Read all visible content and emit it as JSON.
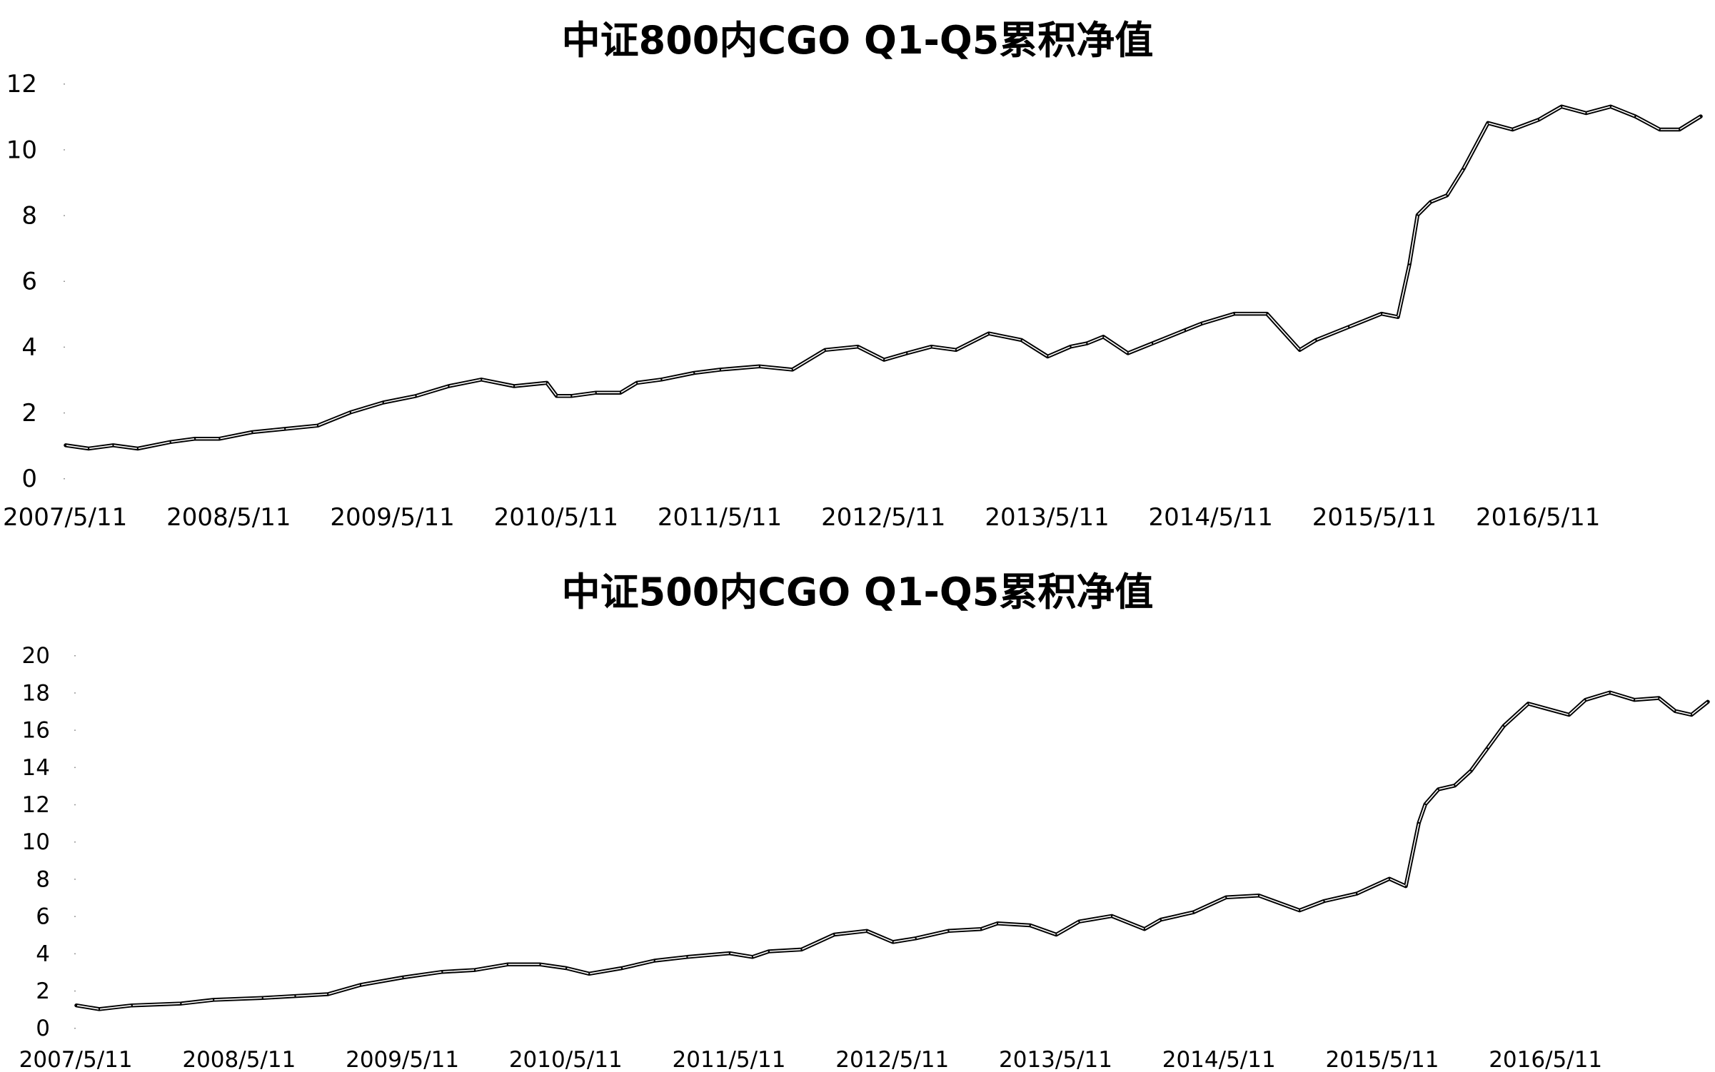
{
  "chart_data": [
    {
      "type": "line",
      "title": "中证800内CGO Q1-Q5累积净值",
      "xlabel": "",
      "ylabel": "",
      "ylim": [
        0,
        12
      ],
      "yticks": [
        "0",
        "2",
        "4",
        "6",
        "8",
        "10",
        "12"
      ],
      "xticks": [
        "2007/5/11",
        "2008/5/11",
        "2009/5/11",
        "2010/5/11",
        "2011/5/11",
        "2012/5/11",
        "2013/5/11",
        "2014/5/11",
        "2015/5/11",
        "2016/5/11"
      ],
      "x_range": [
        2007.36,
        2017.35
      ],
      "grid": false,
      "legend": "none",
      "line_color": "#000000",
      "series": [
        {
          "x": [
            2007.36,
            2007.5,
            2007.65,
            2007.8,
            2008.0,
            2008.15,
            2008.3,
            2008.5,
            2008.7,
            2008.9,
            2009.1,
            2009.3,
            2009.5,
            2009.7,
            2009.9,
            2010.1,
            2010.3,
            2010.36,
            2010.45,
            2010.6,
            2010.75,
            2010.85,
            2011.0,
            2011.2,
            2011.36,
            2011.6,
            2011.8,
            2012.0,
            2012.2,
            2012.36,
            2012.5,
            2012.65,
            2012.8,
            2013.0,
            2013.2,
            2013.36,
            2013.5,
            2013.6,
            2013.7,
            2013.85,
            2014.0,
            2014.2,
            2014.3,
            2014.5,
            2014.7,
            2014.9,
            2015.0,
            2015.2,
            2015.4,
            2015.5,
            2015.57,
            2015.62,
            2015.7,
            2015.8,
            2015.9,
            2016.05,
            2016.2,
            2016.36,
            2016.5,
            2016.65,
            2016.8,
            2016.95,
            2017.1,
            2017.22,
            2017.35
          ],
          "values": [
            1.0,
            0.9,
            1.0,
            0.9,
            1.1,
            1.2,
            1.2,
            1.4,
            1.5,
            1.6,
            2.0,
            2.3,
            2.5,
            2.8,
            3.0,
            2.8,
            2.9,
            2.5,
            2.5,
            2.6,
            2.6,
            2.9,
            3.0,
            3.2,
            3.3,
            3.4,
            3.3,
            3.9,
            4.0,
            3.6,
            3.8,
            4.0,
            3.9,
            4.4,
            4.2,
            3.7,
            4.0,
            4.1,
            4.3,
            3.8,
            4.1,
            4.5,
            4.7,
            5.0,
            5.0,
            3.9,
            4.2,
            4.6,
            5.0,
            4.9,
            6.5,
            8.0,
            8.4,
            8.6,
            9.4,
            10.8,
            10.6,
            10.9,
            11.3,
            11.1,
            11.3,
            11.0,
            10.6,
            10.6,
            11.0
          ]
        }
      ]
    },
    {
      "type": "line",
      "title": "中证500内CGO Q1-Q5累积净值",
      "xlabel": "",
      "ylabel": "",
      "ylim": [
        0,
        20
      ],
      "yticks": [
        "0",
        "2",
        "4",
        "6",
        "8",
        "10",
        "12",
        "14",
        "16",
        "18",
        "20"
      ],
      "xticks": [
        "2007/5/11",
        "2008/5/11",
        "2009/5/11",
        "2010/5/11",
        "2011/5/11",
        "2012/5/11",
        "2013/5/11",
        "2014/5/11",
        "2015/5/11",
        "2016/5/11"
      ],
      "x_range": [
        2007.36,
        2017.35
      ],
      "grid": false,
      "legend": "none",
      "line_color": "#000000",
      "series": [
        {
          "x": [
            2007.36,
            2007.5,
            2007.7,
            2008.0,
            2008.2,
            2008.5,
            2008.7,
            2008.9,
            2009.1,
            2009.36,
            2009.6,
            2009.8,
            2010.0,
            2010.2,
            2010.36,
            2010.5,
            2010.7,
            2010.9,
            2011.1,
            2011.36,
            2011.5,
            2011.6,
            2011.8,
            2012.0,
            2012.2,
            2012.36,
            2012.5,
            2012.7,
            2012.9,
            2013.0,
            2013.2,
            2013.36,
            2013.5,
            2013.7,
            2013.9,
            2014.0,
            2014.2,
            2014.4,
            2014.6,
            2014.85,
            2015.0,
            2015.2,
            2015.4,
            2015.5,
            2015.58,
            2015.62,
            2015.7,
            2015.8,
            2015.9,
            2016.0,
            2016.1,
            2016.25,
            2016.5,
            2016.6,
            2016.75,
            2016.9,
            2017.05,
            2017.15,
            2017.25,
            2017.35
          ],
          "values": [
            1.2,
            1.0,
            1.2,
            1.3,
            1.5,
            1.6,
            1.7,
            1.8,
            2.3,
            2.7,
            3.0,
            3.1,
            3.4,
            3.4,
            3.2,
            2.9,
            3.2,
            3.6,
            3.8,
            4.0,
            3.8,
            4.1,
            4.2,
            5.0,
            5.2,
            4.6,
            4.8,
            5.2,
            5.3,
            5.6,
            5.5,
            5.0,
            5.7,
            6.0,
            5.3,
            5.8,
            6.2,
            7.0,
            7.1,
            6.3,
            6.8,
            7.2,
            8.0,
            7.6,
            11.0,
            12.0,
            12.8,
            13.0,
            13.8,
            15.0,
            16.2,
            17.4,
            16.8,
            17.6,
            18.0,
            17.6,
            17.7,
            17.0,
            16.8,
            17.5
          ]
        }
      ]
    }
  ]
}
